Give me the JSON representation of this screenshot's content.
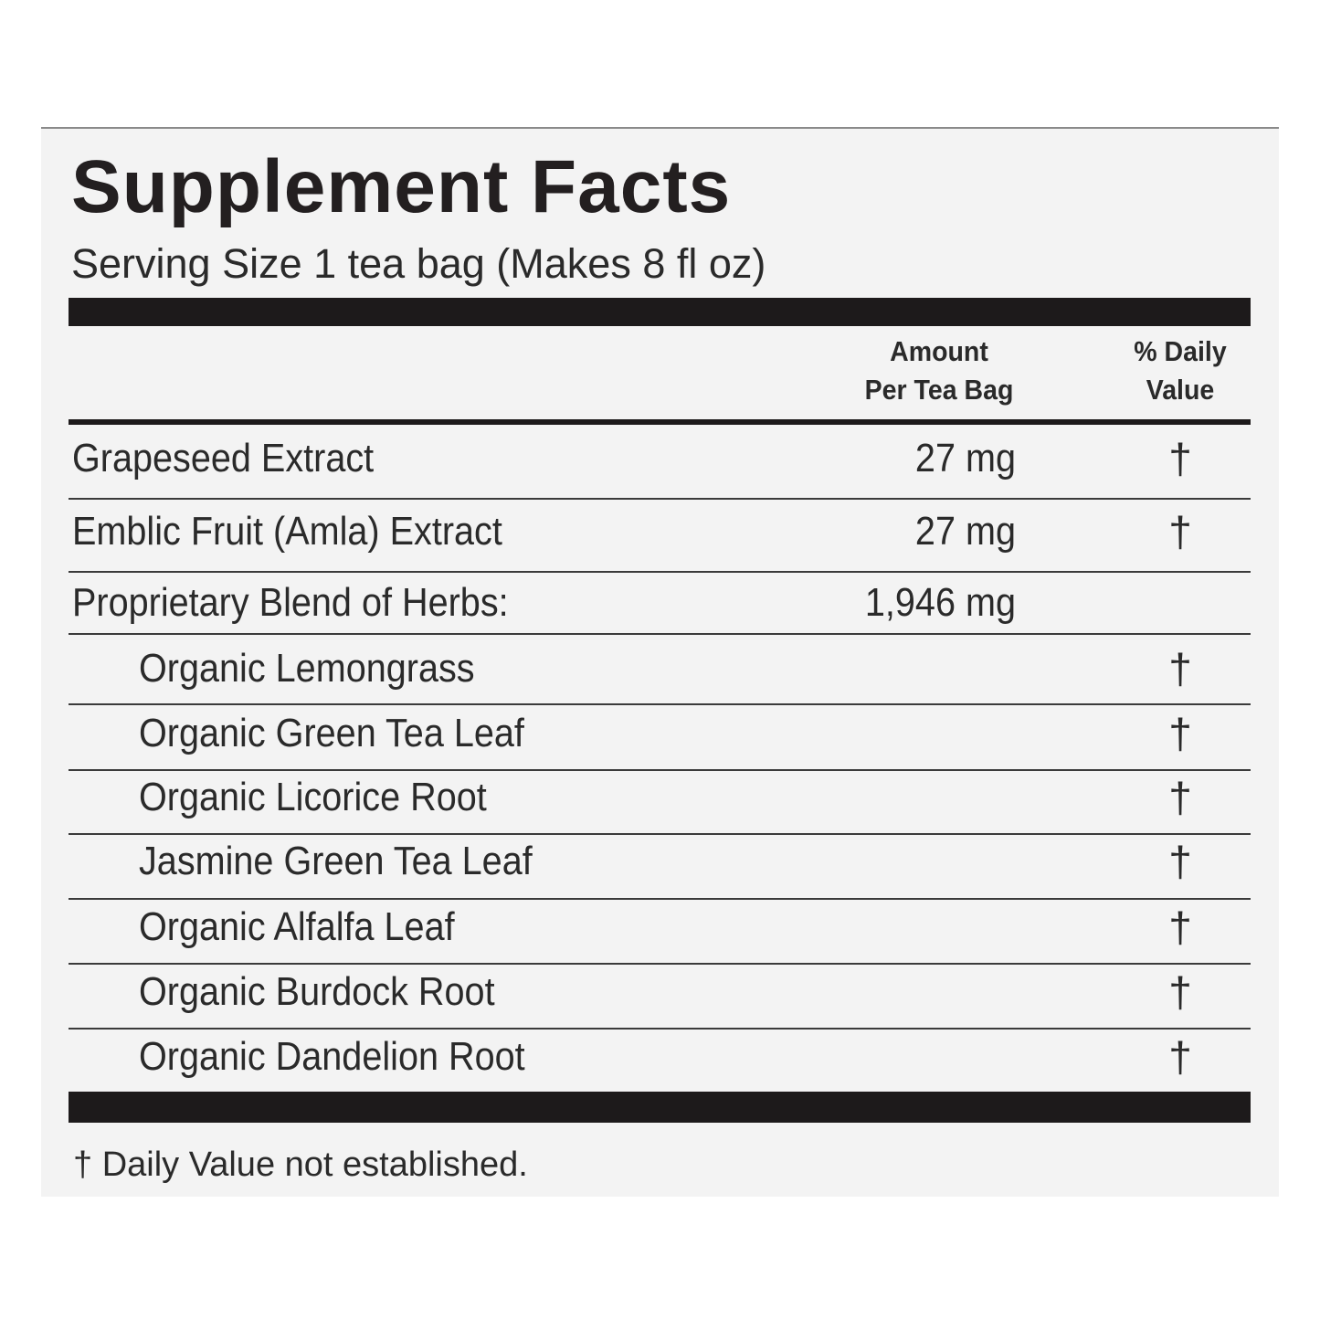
{
  "title": "Supplement Facts",
  "serving_size": "Serving Size 1 tea bag (Makes 8 fl oz)",
  "headers": {
    "amount_line1": "Amount",
    "amount_line2": "Per Tea Bag",
    "dv_line1": "% Daily",
    "dv_line2": "Value"
  },
  "rows": [
    {
      "name": "Grapeseed Extract",
      "amount": "27 mg",
      "dv": "†",
      "indent": false
    },
    {
      "name": "Emblic Fruit (Amla) Extract",
      "amount": "27 mg",
      "dv": "†",
      "indent": false
    },
    {
      "name": "Proprietary Blend of Herbs:",
      "amount": "1,946 mg",
      "dv": "",
      "indent": false
    },
    {
      "name": "Organic Lemongrass",
      "amount": "",
      "dv": "†",
      "indent": true
    },
    {
      "name": "Organic Green Tea Leaf",
      "amount": "",
      "dv": "†",
      "indent": true
    },
    {
      "name": "Organic Licorice Root",
      "amount": "",
      "dv": "†",
      "indent": true
    },
    {
      "name": "Jasmine Green Tea Leaf",
      "amount": "",
      "dv": "†",
      "indent": true
    },
    {
      "name": "Organic Alfalfa Leaf",
      "amount": "",
      "dv": "†",
      "indent": true
    },
    {
      "name": "Organic Burdock Root",
      "amount": "",
      "dv": "†",
      "indent": true
    },
    {
      "name": "Organic Dandelion Root",
      "amount": "",
      "dv": "†",
      "indent": true
    }
  ],
  "footnote": "† Daily Value not established."
}
